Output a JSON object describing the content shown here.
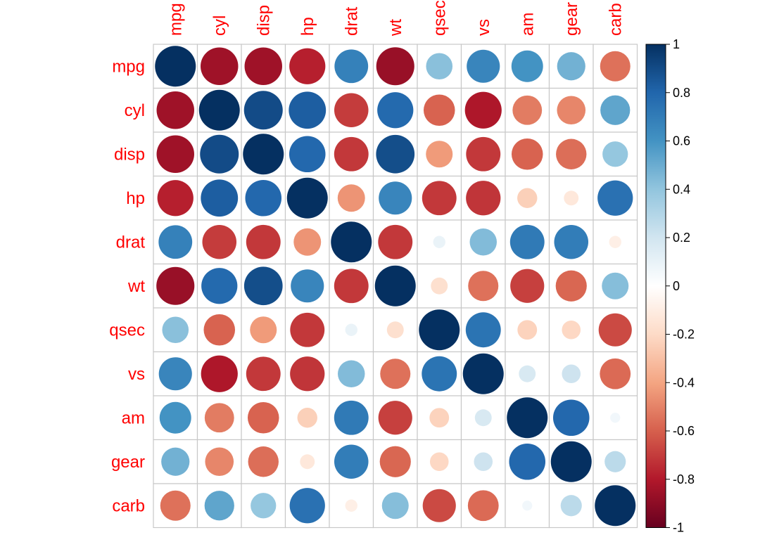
{
  "chart_data": {
    "type": "heatmap",
    "subtype": "correlation-circles",
    "variables": [
      "mpg",
      "cyl",
      "disp",
      "hp",
      "drat",
      "wt",
      "qsec",
      "vs",
      "am",
      "gear",
      "carb"
    ],
    "matrix": [
      [
        1.0,
        -0.85,
        -0.85,
        -0.78,
        0.68,
        -0.87,
        0.42,
        0.66,
        0.6,
        0.48,
        -0.55
      ],
      [
        -0.85,
        1.0,
        0.9,
        0.83,
        -0.7,
        0.78,
        -0.59,
        -0.81,
        -0.52,
        -0.49,
        0.53
      ],
      [
        -0.85,
        0.9,
        1.0,
        0.79,
        -0.71,
        0.89,
        -0.43,
        -0.71,
        -0.59,
        -0.56,
        0.39
      ],
      [
        -0.78,
        0.83,
        0.79,
        1.0,
        -0.45,
        0.66,
        -0.71,
        -0.72,
        -0.24,
        -0.13,
        0.75
      ],
      [
        0.68,
        -0.7,
        -0.71,
        -0.45,
        1.0,
        -0.71,
        0.09,
        0.44,
        0.71,
        0.7,
        -0.09
      ],
      [
        -0.87,
        0.78,
        0.89,
        0.66,
        -0.71,
        1.0,
        -0.17,
        -0.55,
        -0.69,
        -0.58,
        0.43
      ],
      [
        0.42,
        -0.59,
        -0.43,
        -0.71,
        0.09,
        -0.17,
        1.0,
        0.74,
        -0.23,
        -0.21,
        -0.66
      ],
      [
        0.66,
        -0.81,
        -0.71,
        -0.72,
        0.44,
        -0.55,
        0.74,
        1.0,
        0.17,
        0.21,
        -0.57
      ],
      [
        0.6,
        -0.52,
        -0.59,
        -0.24,
        0.71,
        -0.69,
        -0.23,
        0.17,
        1.0,
        0.79,
        0.06
      ],
      [
        0.48,
        -0.49,
        -0.56,
        -0.13,
        0.7,
        -0.58,
        -0.21,
        0.21,
        0.79,
        1.0,
        0.27
      ],
      [
        -0.55,
        0.53,
        0.39,
        0.75,
        -0.09,
        0.43,
        -0.66,
        -0.57,
        0.06,
        0.27,
        1.0
      ]
    ],
    "colorbar": {
      "range": [
        -1,
        1
      ],
      "tick_labels": [
        "1",
        "0.8",
        "0.6",
        "0.4",
        "0.2",
        "0",
        "-0.2",
        "-0.4",
        "-0.6",
        "-0.8",
        "-1"
      ],
      "tick_values": [
        1,
        0.8,
        0.6,
        0.4,
        0.2,
        0,
        -0.2,
        -0.4,
        -0.6,
        -0.8,
        -1
      ],
      "colors": [
        "#67001F",
        "#B2182B",
        "#D6604D",
        "#F4A582",
        "#FDDBC7",
        "#FFFFFF",
        "#D1E5F0",
        "#92C5DE",
        "#4393C3",
        "#2166AC",
        "#053061"
      ]
    },
    "label_color": "#FF0000",
    "grid_color": "#C8C8C8",
    "grid": true,
    "legend_position": "right"
  }
}
